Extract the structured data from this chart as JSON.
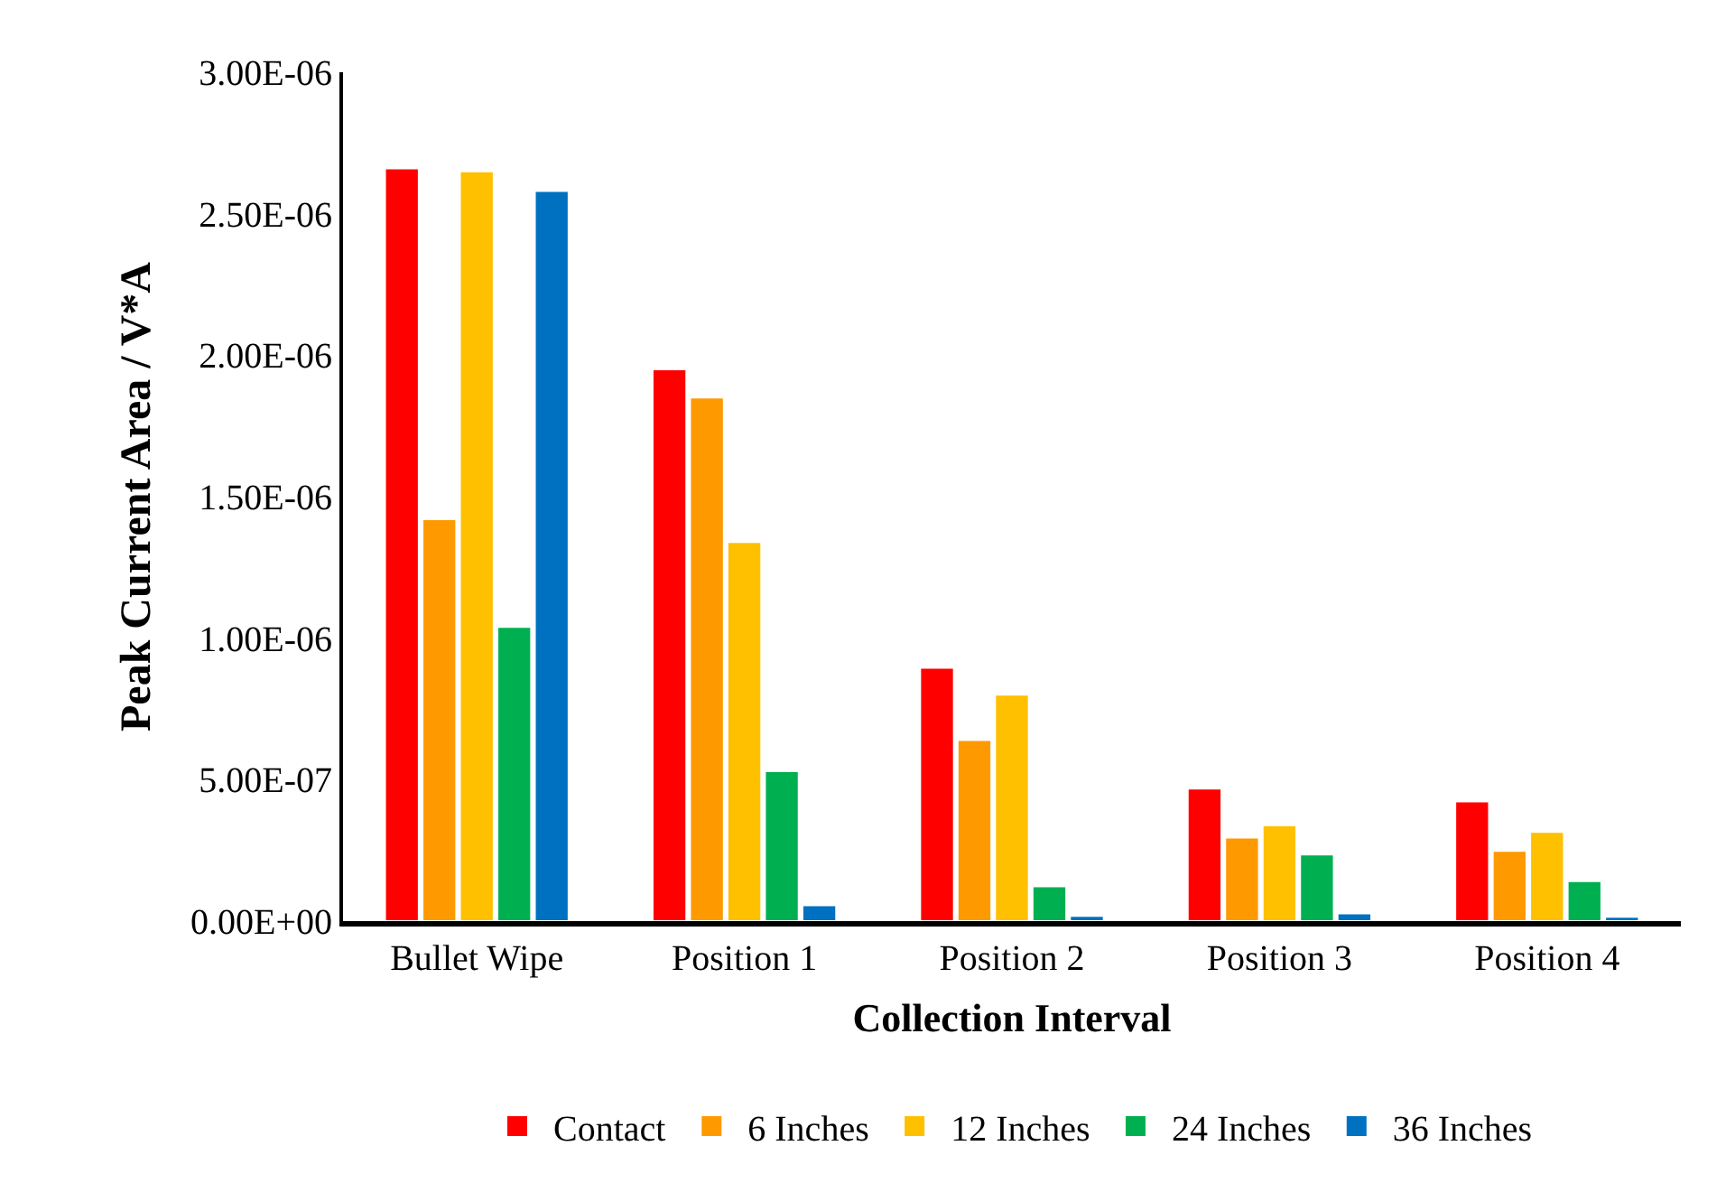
{
  "chart_data": {
    "type": "bar",
    "xlabel": "Collection Interval",
    "ylabel": "Peak Current Area / V*A",
    "categories": [
      "Bullet Wipe",
      "Position 1",
      "Position 2",
      "Position 3",
      "Position 4"
    ],
    "series": [
      {
        "name": "Contact",
        "color": "#ff0000",
        "values": [
          2.66e-06,
          1.95e-06,
          8.95e-07,
          4.68e-07,
          4.23e-07
        ]
      },
      {
        "name": "6 Inches",
        "color": "#ff9900",
        "values": [
          1.42e-06,
          1.85e-06,
          6.4e-07,
          2.95e-07,
          2.48e-07
        ]
      },
      {
        "name": "12 Inches",
        "color": "#ffc000",
        "values": [
          2.65e-06,
          1.34e-06,
          8e-07,
          3.38e-07,
          3.15e-07
        ]
      },
      {
        "name": "24 Inches",
        "color": "#00b050",
        "values": [
          1.04e-06,
          5.3e-07,
          1.23e-07,
          2.35e-07,
          1.41e-07
        ]
      },
      {
        "name": "36 Inches",
        "color": "#0070c0",
        "values": [
          2.58e-06,
          5.6e-08,
          1.8e-08,
          2.7e-08,
          1.5e-08
        ]
      }
    ],
    "ylim": [
      0,
      3e-06
    ],
    "yticks": [
      {
        "value": 0,
        "label": "0.00E+00"
      },
      {
        "value": 5e-07,
        "label": "5.00E-07"
      },
      {
        "value": 1e-06,
        "label": "1.00E-06"
      },
      {
        "value": 1.5e-06,
        "label": "1.50E-06"
      },
      {
        "value": 2e-06,
        "label": "2.00E-06"
      },
      {
        "value": 2.5e-06,
        "label": "2.50E-06"
      },
      {
        "value": 3e-06,
        "label": "3.00E-06"
      }
    ],
    "legend": "bottom"
  }
}
